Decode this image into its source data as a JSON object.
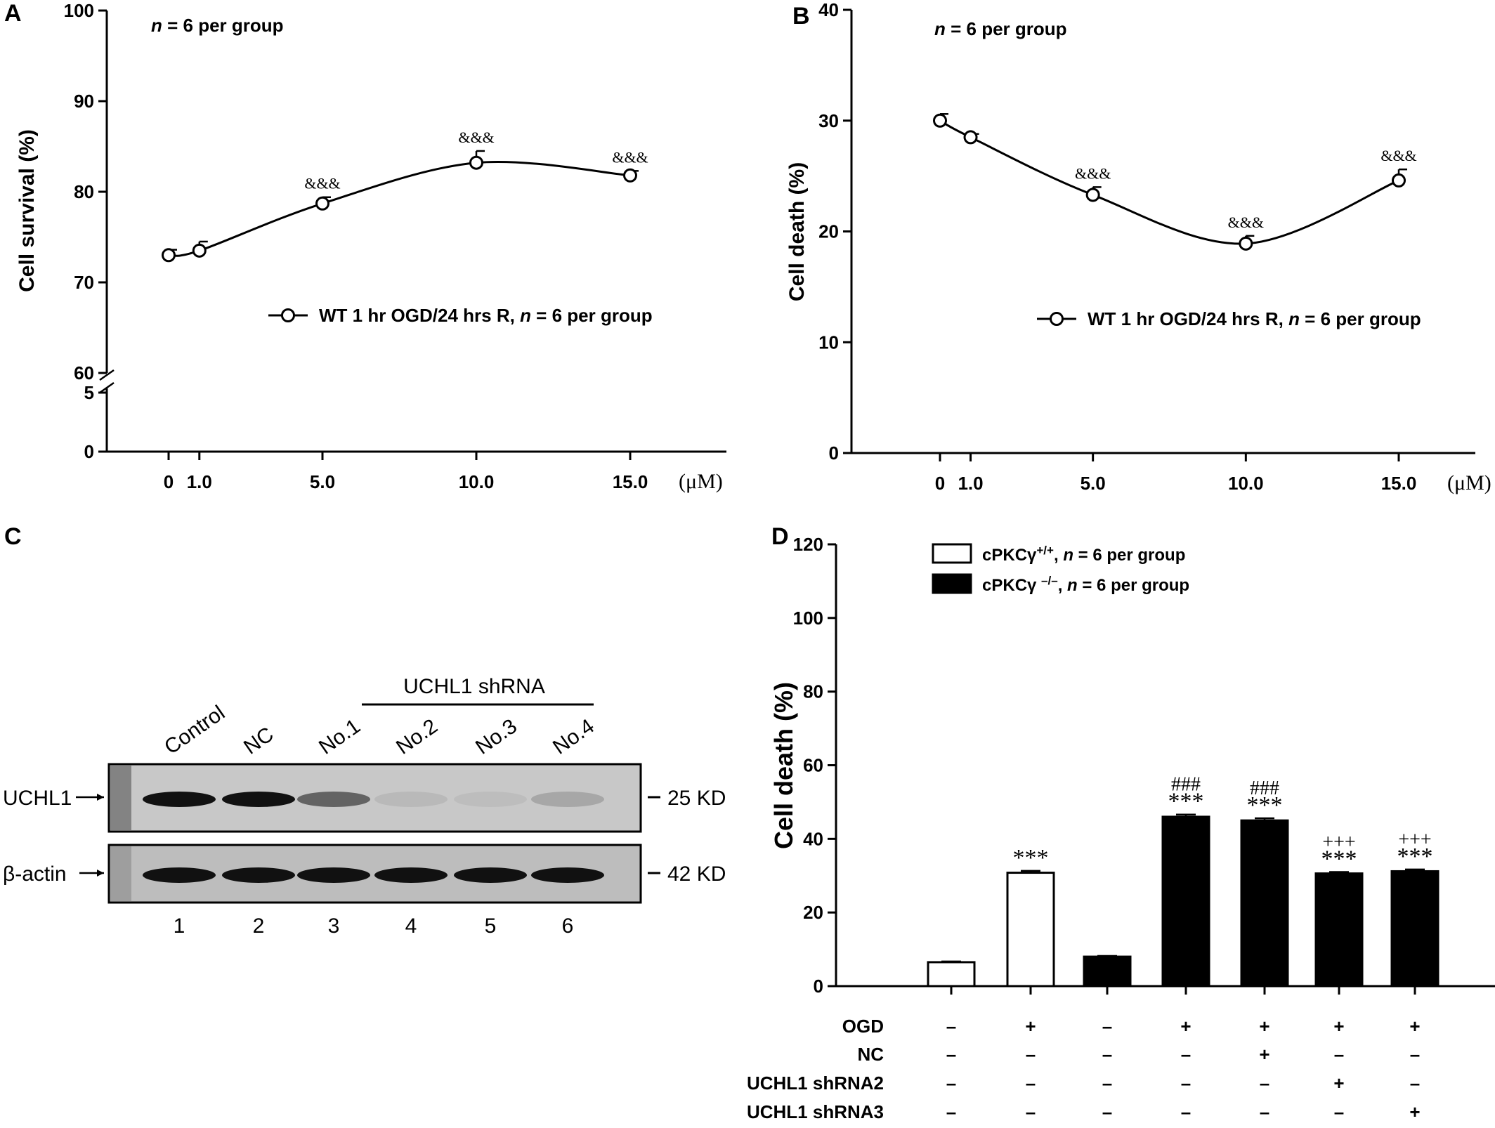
{
  "chart_data": [
    {
      "panel": "A",
      "type": "line",
      "ylabel": "Cell survival (%)",
      "unit": "(μM)",
      "note_n": "n",
      "note_rest": " = 6 per group",
      "x": [
        0,
        1.0,
        5.0,
        10.0,
        15.0
      ],
      "xticklabels": [
        "0",
        "1.0",
        "5.0",
        "10.0",
        "15.0"
      ],
      "yticks_upper": [
        "60",
        "70",
        "80",
        "90",
        "100"
      ],
      "yticks_lower": [
        "0",
        "5"
      ],
      "ylim": [
        60,
        100
      ],
      "axis_break": true,
      "series": [
        {
          "name_pre": "WT 1 hr OGD/24 hrs R, ",
          "name_n": "n",
          "name_post": " = 6 per group",
          "values": [
            73.0,
            73.5,
            78.7,
            83.2,
            81.8
          ],
          "errors": [
            0.6,
            1.0,
            0.7,
            1.3,
            0.5
          ],
          "annotations": [
            "",
            "",
            "&&&",
            "&&&",
            "&&&"
          ]
        }
      ]
    },
    {
      "panel": "B",
      "type": "line",
      "ylabel": "Cell death (%)",
      "unit": "(μM)",
      "note_n": "n",
      "note_rest": " = 6 per group",
      "x": [
        0,
        1.0,
        5.0,
        10.0,
        15.0
      ],
      "xticklabels": [
        "0",
        "1.0",
        "5.0",
        "10.0",
        "15.0"
      ],
      "yticks": [
        "0",
        "10",
        "20",
        "30",
        "40"
      ],
      "ylim": [
        0,
        40
      ],
      "series": [
        {
          "name_pre": "WT 1 hr OGD/24 hrs R, ",
          "name_n": "n",
          "name_post": " = 6 per group",
          "values": [
            30.0,
            28.5,
            23.3,
            18.9,
            24.6
          ],
          "errors": [
            0.6,
            0.3,
            0.7,
            0.7,
            1.0
          ],
          "annotations": [
            "",
            "",
            "&&&",
            "&&&",
            "&&&"
          ]
        }
      ]
    },
    {
      "panel": "D",
      "type": "bar",
      "ylabel": "Cell death (%)",
      "yticks": [
        "0",
        "20",
        "40",
        "60",
        "80",
        "100",
        "120"
      ],
      "ylim": [
        0,
        120
      ],
      "legend": [
        {
          "label": "cPKCγ",
          "sup": "+/+",
          "rest_pre": ", ",
          "rest_n": "n",
          "rest_post": " = 6 per group",
          "color": "#ffffff"
        },
        {
          "label": "cPKCγ ",
          "sup": "–/–",
          "rest_pre": ", ",
          "rest_n": "n",
          "rest_post": " = 6 per group",
          "color": "#000000"
        }
      ],
      "values": [
        6.5,
        30.8,
        8.0,
        46.0,
        45.0,
        30.6,
        31.2
      ],
      "errors": [
        0.2,
        0.5,
        0.2,
        0.6,
        0.6,
        0.4,
        0.5
      ],
      "fills": [
        "#ffffff",
        "#ffffff",
        "#000000",
        "#000000",
        "#000000",
        "#000000",
        "#000000"
      ],
      "annot_top": [
        "",
        "",
        "",
        "###",
        "###",
        "+++",
        "+++"
      ],
      "annot_bottom": [
        "",
        "***",
        "",
        "***",
        "***",
        "***",
        "***"
      ],
      "conditions": [
        {
          "label": "OGD",
          "signs": [
            "–",
            "+",
            "–",
            "+",
            "+",
            "+",
            "+"
          ]
        },
        {
          "label": "NC",
          "signs": [
            "–",
            "–",
            "–",
            "–",
            "+",
            "–",
            "–"
          ]
        },
        {
          "label": "UCHL1 shRNA2",
          "signs": [
            "–",
            "–",
            "–",
            "–",
            "–",
            "+",
            "–"
          ]
        },
        {
          "label": "UCHL1 shRNA3",
          "signs": [
            "–",
            "–",
            "–",
            "–",
            "–",
            "–",
            "+"
          ]
        }
      ]
    }
  ],
  "panels": {
    "a": "A",
    "b": "B",
    "c": "C",
    "d": "D"
  },
  "blot": {
    "group_label": "UCHL1 shRNA",
    "lane_labels": [
      "Control",
      "NC",
      "No.1",
      "No.2",
      "No.3",
      "No.4"
    ],
    "lane_numbers": [
      "1",
      "2",
      "3",
      "4",
      "5",
      "6"
    ],
    "rows": [
      {
        "label": "UCHL1",
        "size": "25 KD",
        "intensity": [
          1.0,
          1.0,
          0.55,
          0.08,
          0.06,
          0.18
        ]
      },
      {
        "label": "β-actin",
        "size": "42 KD",
        "intensity": [
          1.0,
          1.0,
          1.0,
          1.0,
          1.0,
          1.0
        ]
      }
    ]
  }
}
